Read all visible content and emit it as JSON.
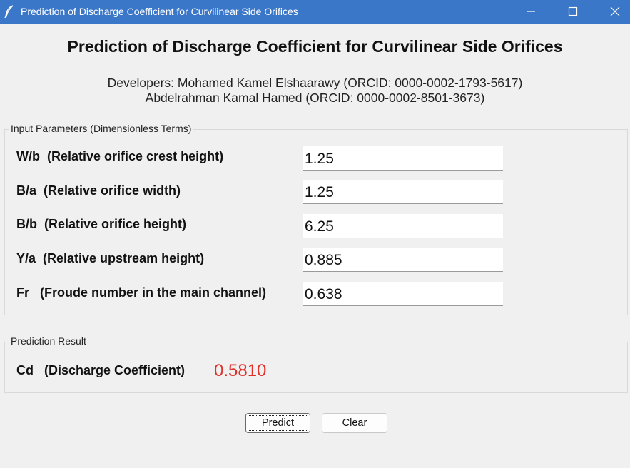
{
  "window": {
    "title": "Prediction of Discharge Coefficient for Curvilinear Side Orifices",
    "icon": "feather-icon",
    "controls": [
      "minimize-icon",
      "maximize-icon",
      "close-icon"
    ],
    "titlebar_color": "#3a77c8"
  },
  "header": {
    "heading": "Prediction of Discharge Coefficient for Curvilinear Side Orifices",
    "developers_line1": "Developers: Mohamed Kamel Elshaarawy (ORCID: 0000-0002-1793-5617)",
    "developers_line2": "Abdelrahman Kamal Hamed (ORCID: 0000-0002-8501-3673)"
  },
  "inputs": {
    "group_title": "Input Parameters (Dimensionless Terms)",
    "params": [
      {
        "label": "W/b  (Relative orifice crest height)",
        "value": "1.25"
      },
      {
        "label": "B/a  (Relative orifice width)",
        "value": "1.25"
      },
      {
        "label": "B/b  (Relative orifice height)",
        "value": "6.25"
      },
      {
        "label": "Y/a  (Relative upstream height)",
        "value": "0.885"
      },
      {
        "label": "Fr   (Froude number in the main channel)",
        "value": "0.638"
      }
    ]
  },
  "result": {
    "group_title": "Prediction Result",
    "label": "Cd   (Discharge Coefficient)",
    "value": "0.5810",
    "value_color": "#e0302a"
  },
  "buttons": {
    "predict": "Predict",
    "clear": "Clear"
  }
}
